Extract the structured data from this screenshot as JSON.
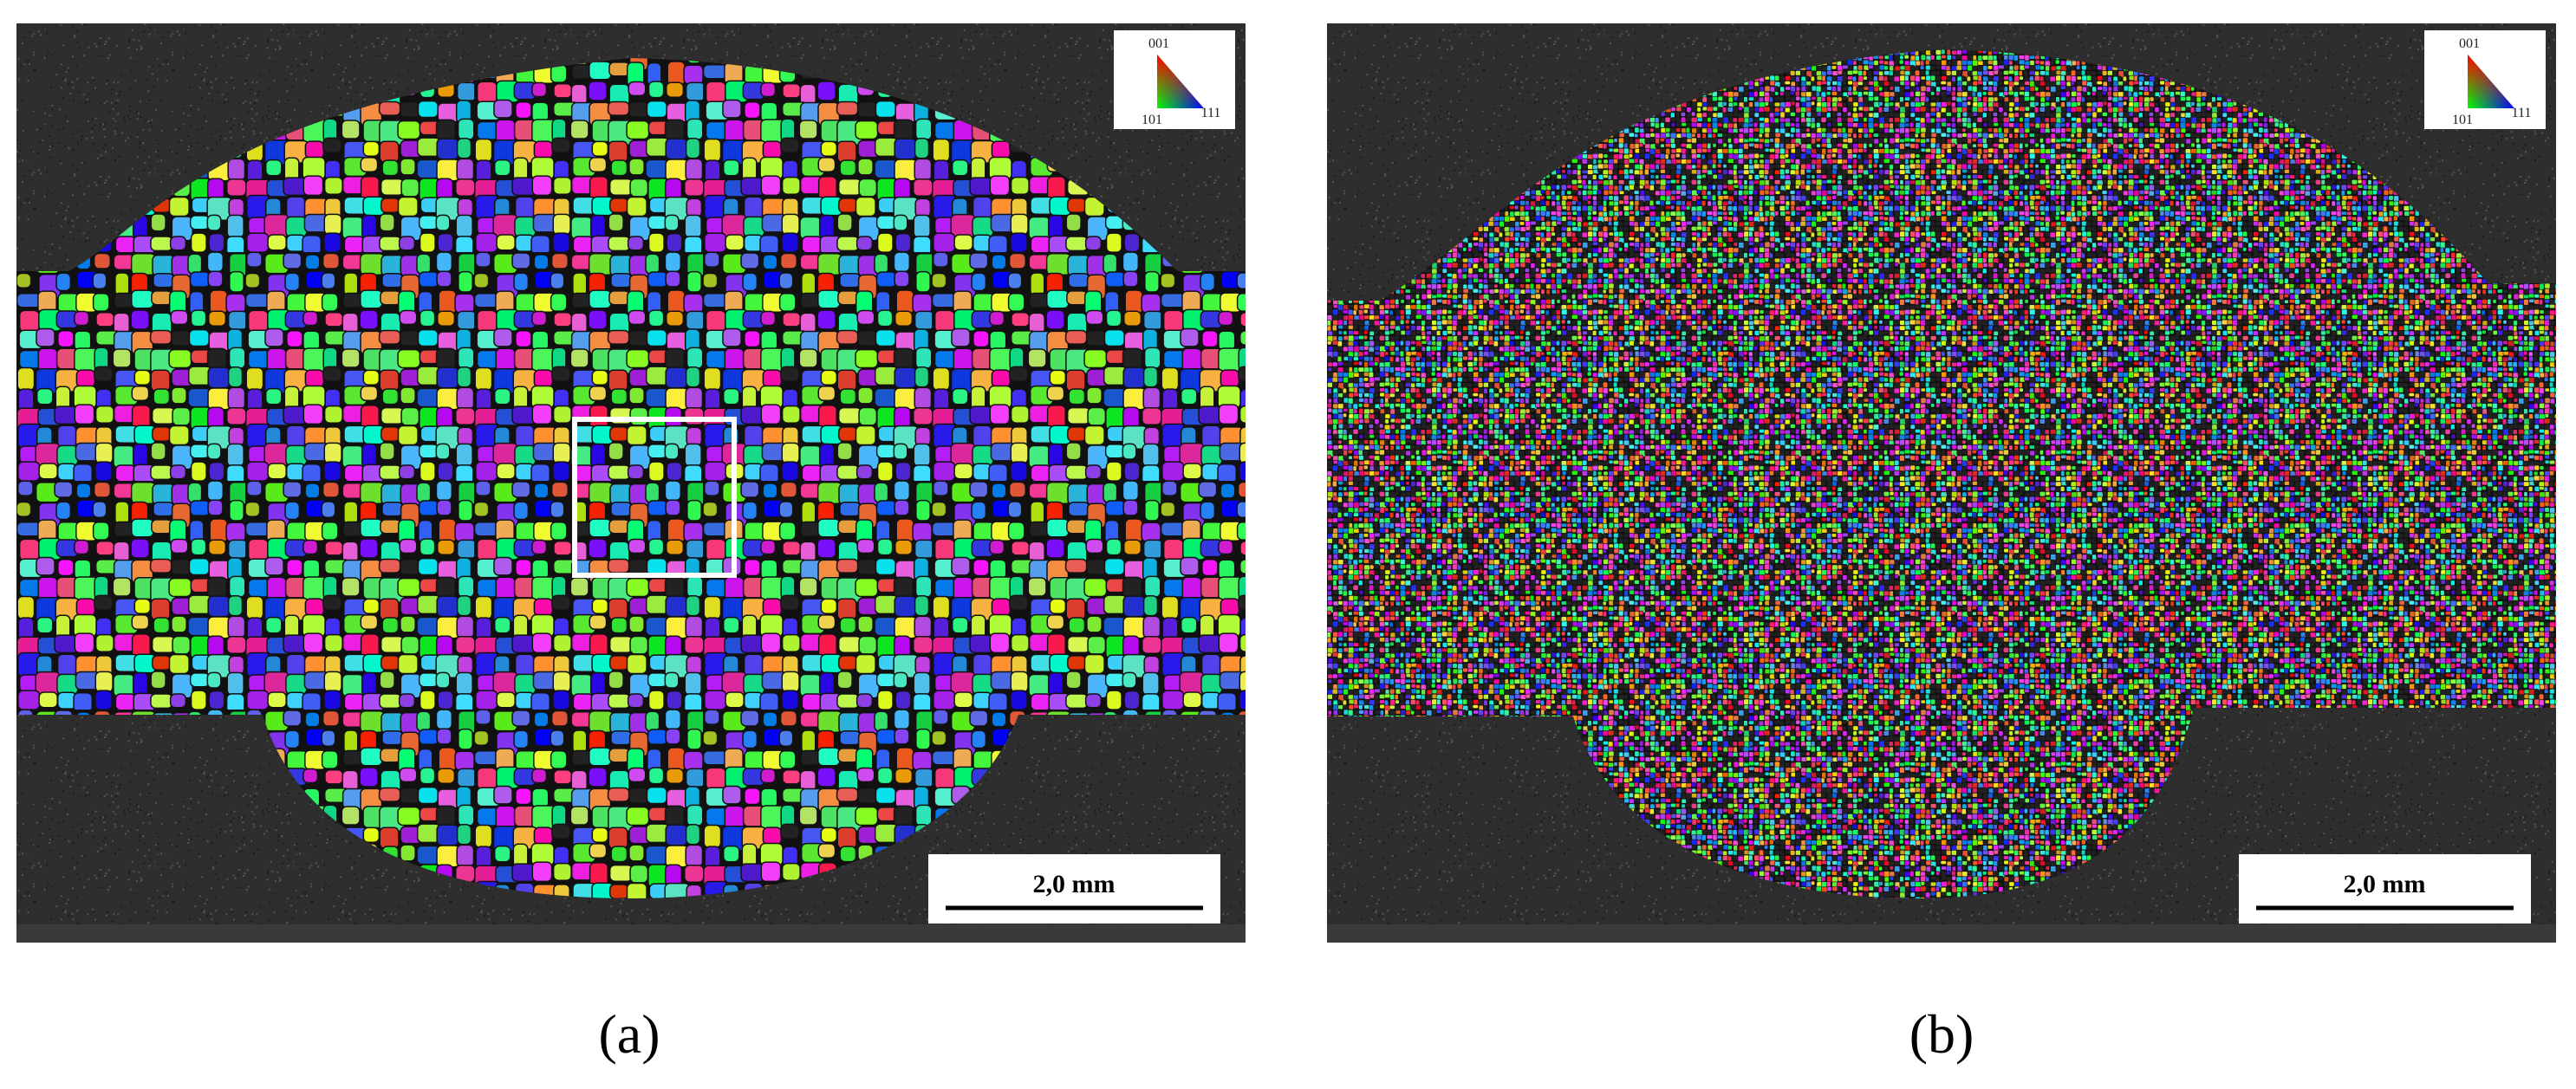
{
  "panels": [
    {
      "label": "(a)",
      "legend": {
        "top": "001",
        "left": "101",
        "right": "111"
      },
      "scale_bar": "2,0 mm"
    },
    {
      "label": "(b)",
      "legend": {
        "top": "001",
        "left": "101",
        "right": "111"
      },
      "scale_bar": "2,0 mm"
    }
  ]
}
